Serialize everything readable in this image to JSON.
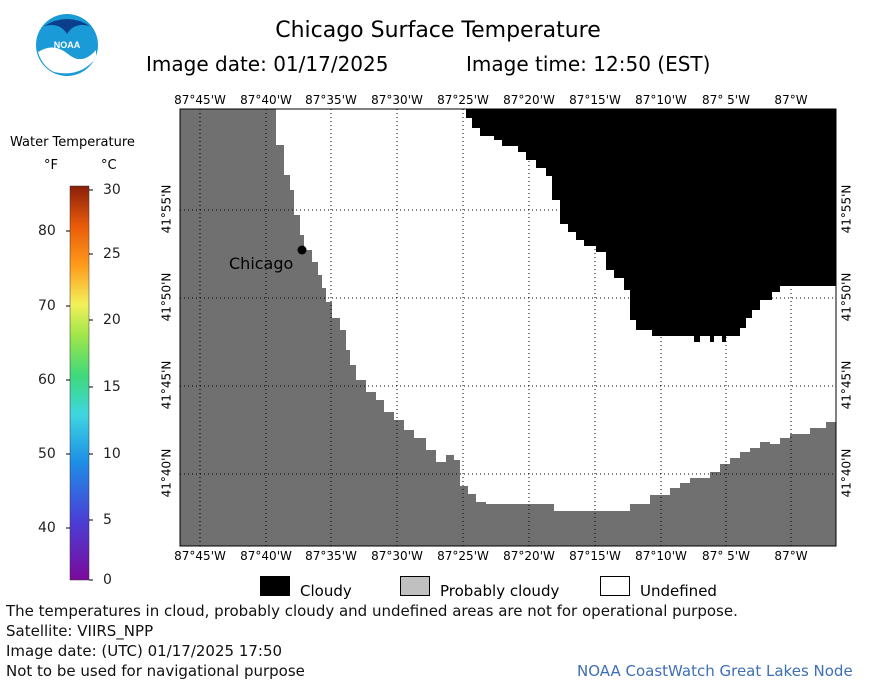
{
  "header": {
    "title": "Chicago Surface Temperature",
    "image_date": "Image date: 01/17/2025",
    "image_time": "Image time: 12:50 (EST)"
  },
  "logo": {
    "text": "NOAA"
  },
  "colorbar": {
    "title": "Water Temperature",
    "unit_f": "°F",
    "unit_c": "°C",
    "f_ticks": [
      "40",
      "50",
      "60",
      "70",
      "80"
    ],
    "c_ticks": [
      "0",
      "5",
      "10",
      "15",
      "20",
      "25",
      "30"
    ],
    "range_c": [
      0,
      30
    ]
  },
  "map": {
    "lon_ticks": [
      "87°45'W",
      "87°40'W",
      "87°35'W",
      "87°30'W",
      "87°25'W",
      "87°20'W",
      "87°15'W",
      "87°10'W",
      "87° 5'W",
      "87°W"
    ],
    "lat_ticks": [
      "41°55'N",
      "41°50'N",
      "41°45'N",
      "41°40'N"
    ],
    "city_label": "Chicago",
    "colors": {
      "land": "#707070",
      "cloudy": "#000000",
      "undefined": "#ffffff",
      "probably_cloudy": "#c0c0c0"
    }
  },
  "legend": {
    "cloudy": "Cloudy",
    "probably_cloudy": "Probably cloudy",
    "undefined": "Undefined"
  },
  "footer": {
    "note": "The temperatures in cloud, probably cloudy and undefined areas are not for operational purpose.",
    "satellite": "Satellite: VIIRS_NPP",
    "utc_date": "Image date: (UTC) 01/17/2025  17:50",
    "nav_warning": "Not to be used for navigational purpose",
    "credit": "NOAA CoastWatch Great Lakes Node"
  }
}
